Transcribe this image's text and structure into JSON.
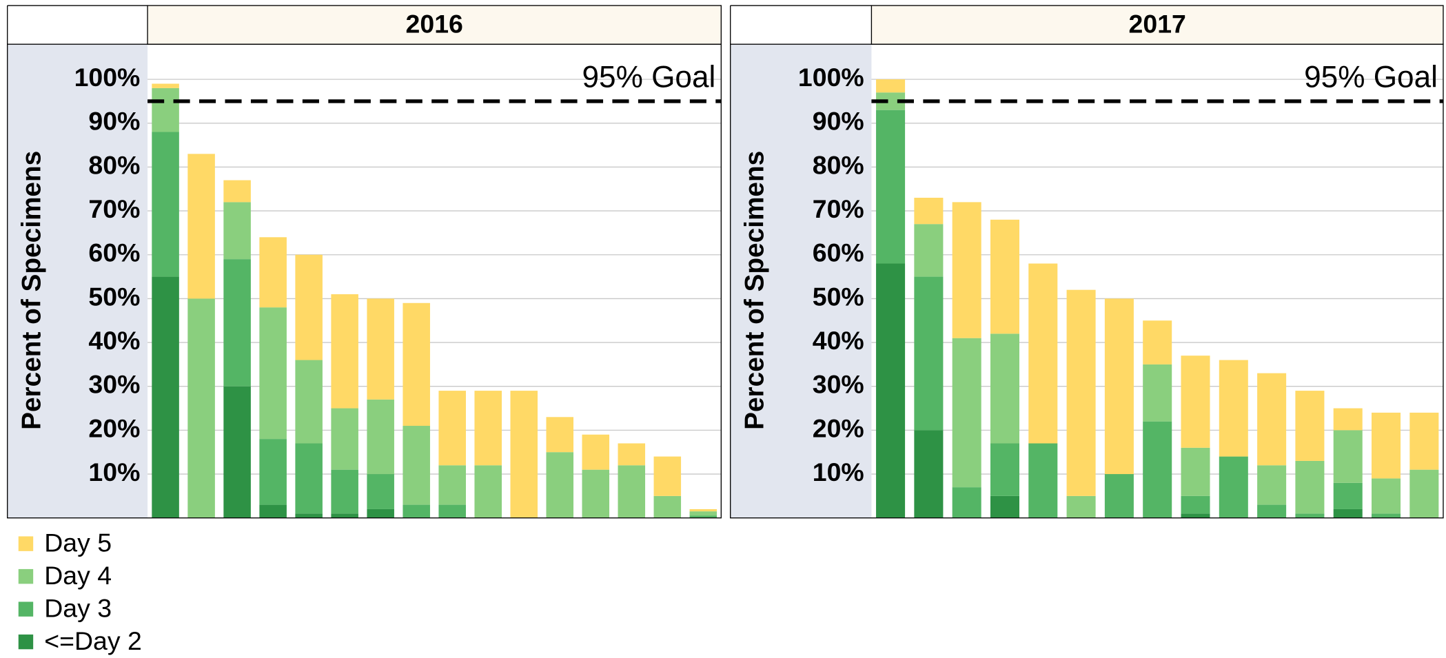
{
  "chart_data": [
    {
      "type": "stacked_bar",
      "title": "2016",
      "ylabel": "Percent of Specimens",
      "ylim": [
        0,
        108
      ],
      "yticks": [
        {
          "value": 10,
          "label": "10%"
        },
        {
          "value": 20,
          "label": "20%"
        },
        {
          "value": 30,
          "label": "30%"
        },
        {
          "value": 40,
          "label": "40%"
        },
        {
          "value": 50,
          "label": "50%"
        },
        {
          "value": 60,
          "label": "60%"
        },
        {
          "value": 70,
          "label": "70%"
        },
        {
          "value": 80,
          "label": "80%"
        },
        {
          "value": 90,
          "label": "90%"
        },
        {
          "value": 100,
          "label": "100%"
        }
      ],
      "grid": true,
      "goal": 95,
      "goal_label": "95% Goal",
      "series": [
        {
          "name": "<=Day 2",
          "color": "#2e9245",
          "values": [
            55,
            0,
            30,
            3,
            1,
            1,
            2,
            0,
            0,
            0,
            0,
            0,
            0,
            0,
            0,
            0
          ]
        },
        {
          "name": "Day 3",
          "color": "#54b565",
          "values": [
            33,
            0,
            29,
            15,
            16,
            10,
            8,
            3,
            3,
            0,
            0,
            0,
            0,
            0,
            0,
            0.5
          ]
        },
        {
          "name": "Day 4",
          "color": "#8acf7e",
          "values": [
            10,
            50,
            13,
            30,
            19,
            14,
            17,
            18,
            9,
            12,
            0,
            15,
            11,
            12,
            5,
            1
          ]
        },
        {
          "name": "Day 5",
          "color": "#ffd966",
          "values": [
            1,
            33,
            5,
            16,
            24,
            26,
            23,
            28,
            17,
            17,
            29,
            8,
            8,
            5,
            9,
            0.5
          ]
        }
      ]
    },
    {
      "type": "stacked_bar",
      "title": "2017",
      "ylabel": "Percent of Specimens",
      "ylim": [
        0,
        108
      ],
      "yticks": [
        {
          "value": 10,
          "label": "10%"
        },
        {
          "value": 20,
          "label": "20%"
        },
        {
          "value": 30,
          "label": "30%"
        },
        {
          "value": 40,
          "label": "40%"
        },
        {
          "value": 50,
          "label": "50%"
        },
        {
          "value": 60,
          "label": "60%"
        },
        {
          "value": 70,
          "label": "70%"
        },
        {
          "value": 80,
          "label": "80%"
        },
        {
          "value": 90,
          "label": "90%"
        },
        {
          "value": 100,
          "label": "100%"
        }
      ],
      "grid": true,
      "goal": 95,
      "goal_label": "95% Goal",
      "series": [
        {
          "name": "<=Day 2",
          "color": "#2e9245",
          "values": [
            58,
            20,
            0,
            5,
            0,
            0,
            0,
            0,
            1,
            0,
            0,
            0,
            2,
            0,
            0
          ]
        },
        {
          "name": "Day 3",
          "color": "#54b565",
          "values": [
            35,
            35,
            7,
            12,
            17,
            0,
            10,
            22,
            4,
            14,
            3,
            1,
            6,
            1,
            0
          ]
        },
        {
          "name": "Day 4",
          "color": "#8acf7e",
          "values": [
            4,
            12,
            34,
            25,
            0,
            5,
            0,
            13,
            11,
            0,
            9,
            12,
            12,
            8,
            11
          ]
        },
        {
          "name": "Day 5",
          "color": "#ffd966",
          "values": [
            3,
            6,
            31,
            26,
            41,
            47,
            40,
            10,
            21,
            22,
            21,
            16,
            5,
            15,
            13
          ]
        }
      ]
    }
  ]
}
